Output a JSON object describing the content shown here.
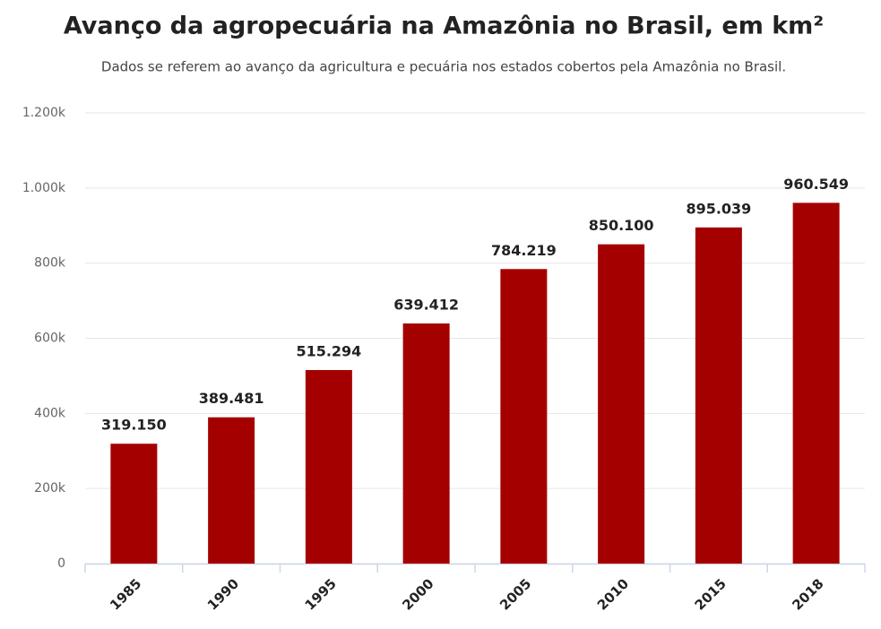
{
  "chart_data": {
    "type": "bar",
    "title": "Avanço da agropecuária na Amazônia no Brasil, em km²",
    "subtitle": "Dados se referem ao avanço da agricultura e pecuária nos estados cobertos pela Amazônia no Brasil.",
    "categories": [
      "1985",
      "1990",
      "1995",
      "2000",
      "2005",
      "2010",
      "2015",
      "2018"
    ],
    "values": [
      319150,
      389481,
      515294,
      639412,
      784219,
      850100,
      895039,
      960549
    ],
    "value_labels": [
      "319.150",
      "389.481",
      "515.294",
      "639.412",
      "784.219",
      "850.100",
      "895.039",
      "960.549"
    ],
    "color": "#a50000",
    "ylim": [
      0,
      1200000
    ],
    "yticks": [
      0,
      {
        "value": 200000,
        "label": "200k"
      },
      {
        "value": 400000,
        "label": "400k"
      },
      {
        "value": 600000,
        "label": "600k"
      },
      {
        "value": 800000,
        "label": "800k"
      },
      {
        "value": 1000000,
        "label": "1.000k"
      },
      {
        "value": 1200000,
        "label": "1.200k"
      }
    ],
    "grid": true
  }
}
